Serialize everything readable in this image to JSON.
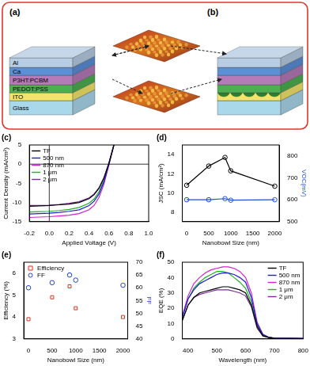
{
  "diagram": {
    "panels": [
      {
        "label": "(a)",
        "layers": [
          "Al",
          "Ca",
          "P3HT:PCBM",
          "PEDOT:PSS",
          "ITO",
          "Glass"
        ]
      },
      {
        "label": "(b)"
      }
    ]
  },
  "chart_data": [
    {
      "type": "line",
      "title": "(c)",
      "x_label": "Applied Voltage (V)",
      "y_label": "Current Density (mA/cm²)",
      "xlim": [
        -0.2,
        1.0
      ],
      "xticks": [
        -0.2,
        {
          "value": 0,
          "label": "0.0"
        },
        0.2,
        0.4,
        0.6,
        0.8,
        {
          "value": 1,
          "label": "1.0"
        }
      ],
      "ylim": [
        -15,
        5
      ],
      "yticks": [
        -15,
        -10,
        -5,
        0,
        5
      ],
      "legend": "upper left",
      "x": [
        -0.2,
        -0.1,
        0,
        0.1,
        0.2,
        0.3,
        0.4,
        0.45,
        0.5,
        0.55,
        0.6,
        0.65
      ],
      "series": [
        {
          "name": "TF",
          "color": "#000000",
          "values": [
            -11.0,
            -10.9,
            -10.8,
            -10.6,
            -10.4,
            -10.0,
            -9.0,
            -8.0,
            -6.3,
            -3.6,
            0.2,
            5.0
          ]
        },
        {
          "name": "500 nm",
          "color": "#1f1fd0",
          "values": [
            -13.0,
            -12.9,
            -12.8,
            -12.6,
            -12.3,
            -11.9,
            -10.8,
            -9.7,
            -7.8,
            -4.6,
            0.0,
            5.0
          ]
        },
        {
          "name": "870 nm",
          "color": "#d020d0",
          "values": [
            -13.9,
            -13.8,
            -13.7,
            -13.5,
            -13.3,
            -12.9,
            -11.9,
            -10.8,
            -8.7,
            -5.2,
            -0.3,
            5.0
          ]
        },
        {
          "name": "1 μm",
          "color": "#20b020",
          "values": [
            -12.5,
            -12.4,
            -12.3,
            -12.1,
            -11.8,
            -11.3,
            -10.2,
            -9.1,
            -7.2,
            -4.2,
            0.2,
            5.0
          ]
        },
        {
          "name": "2 μm",
          "color": "#7a2a9a",
          "values": [
            -10.8,
            -10.75,
            -10.7,
            -10.5,
            -10.2,
            -9.8,
            -8.8,
            -7.8,
            -6.2,
            -3.5,
            0.3,
            5.0
          ]
        }
      ]
    },
    {
      "type": "line",
      "title": "(d)",
      "x_label": "Nanobowl Size (nm)",
      "y_label": "JSC (mA/cm²)",
      "y2_label": "VOC(mV)",
      "xlim": [
        -100,
        2100
      ],
      "xticks": [
        0,
        500,
        1000,
        1500,
        2000
      ],
      "ylim": [
        7,
        15
      ],
      "yticks": [
        8,
        10,
        12,
        14
      ],
      "y2lim": [
        500,
        850
      ],
      "y2ticks": [
        500,
        600,
        700,
        800
      ],
      "x": [
        0,
        500,
        870,
        1000,
        2000
      ],
      "series": [
        {
          "color": "#000000",
          "marker": "circle",
          "values": [
            10.8,
            12.8,
            13.7,
            12.3,
            10.7
          ]
        },
        {
          "color": "#1f4fd0",
          "marker": "circle",
          "axis": "y2",
          "values": [
            600,
            600,
            605,
            598,
            600
          ]
        }
      ]
    },
    {
      "type": "scatter",
      "title": "(e)",
      "x_label": "Nanobowl Size (nm)",
      "y_label": "Efficiency (%)",
      "y2_label": "FF",
      "xlim": [
        -100,
        2100
      ],
      "xticks": [
        0,
        500,
        1000,
        1500,
        2000
      ],
      "ylim": [
        3,
        6.5
      ],
      "yticks": [
        3,
        4,
        5,
        6
      ],
      "y2lim": [
        40,
        70
      ],
      "y2ticks": [
        40,
        45,
        50,
        55,
        60,
        65,
        70
      ],
      "legend": "upper left",
      "x": [
        0,
        500,
        870,
        1000,
        2000
      ],
      "series": [
        {
          "name": "Efficiency",
          "color": "#e03020",
          "marker": "square",
          "values": [
            3.9,
            4.9,
            5.4,
            4.4,
            4.0
          ]
        },
        {
          "name": "FF",
          "color": "#2040d0",
          "marker": "circle",
          "axis": "y2",
          "values": [
            60,
            62,
            65,
            63,
            61
          ]
        }
      ]
    },
    {
      "type": "line",
      "title": "(f)",
      "x_label": "Wavelength (nm)",
      "y_label": "EQE (%)",
      "xlim": [
        380,
        800
      ],
      "xticks": [
        400,
        500,
        600,
        700,
        800
      ],
      "ylim": [
        0,
        50
      ],
      "yticks": [
        0,
        10,
        20,
        30,
        40,
        50
      ],
      "legend": "upper right",
      "x": [
        380,
        400,
        420,
        440,
        460,
        480,
        500,
        520,
        540,
        560,
        580,
        600,
        620,
        640,
        660,
        680,
        700,
        750,
        800
      ],
      "series": [
        {
          "name": "TF",
          "color": "#000000",
          "values": [
            12,
            22,
            27,
            30,
            31,
            32,
            33,
            34,
            34,
            33,
            32,
            30,
            22,
            8,
            2,
            1,
            0.5,
            0.3,
            0.2
          ]
        },
        {
          "name": "500 nm",
          "color": "#1f1fd0",
          "values": [
            14,
            26,
            32,
            36,
            38,
            40,
            42,
            43,
            43,
            42,
            40,
            37,
            27,
            10,
            3,
            1,
            0.5,
            0.3,
            0.2
          ]
        },
        {
          "name": "870 nm",
          "color": "#d020d0",
          "values": [
            15,
            28,
            36,
            40,
            43,
            45,
            46,
            47,
            47,
            46,
            44,
            40,
            30,
            11,
            3,
            1,
            0.5,
            0.3,
            0.2
          ]
        },
        {
          "name": "1 μm",
          "color": "#20b020",
          "values": [
            14,
            26,
            33,
            37,
            40,
            42,
            44,
            44,
            43,
            40,
            37,
            33,
            24,
            9,
            2,
            1,
            0.5,
            0.3,
            0.2
          ]
        },
        {
          "name": "2 μm",
          "color": "#7a2a9a",
          "values": [
            12,
            22,
            27,
            29,
            30,
            31,
            32,
            32,
            32,
            31,
            30,
            28,
            21,
            7,
            2,
            1,
            0.5,
            0.3,
            0.2
          ]
        }
      ]
    }
  ]
}
